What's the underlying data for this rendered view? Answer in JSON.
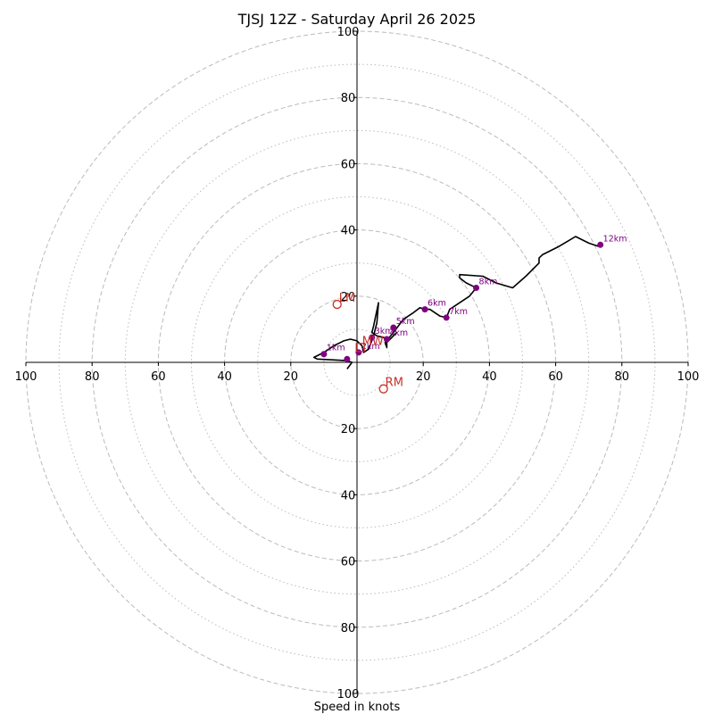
{
  "chart_data": {
    "type": "hodograph",
    "title": "TJSJ 12Z - Saturday April 26 2025",
    "xlabel": "Speed in knots",
    "range": [
      -100,
      100
    ],
    "ring_major": [
      20,
      40,
      60,
      80,
      100
    ],
    "ring_minor": [
      10,
      30,
      50,
      70,
      90
    ],
    "tick_labels": [
      "100",
      "80",
      "60",
      "40",
      "20",
      "20",
      "40",
      "60",
      "80",
      "100"
    ],
    "tick_values": [
      -100,
      -80,
      -60,
      -40,
      -20,
      20,
      40,
      60,
      80,
      100
    ],
    "hodograph_color": "#000000",
    "marker_color": "#800080",
    "motion_color": "#c8302a",
    "grid_color": "#bbbbbb",
    "series": [
      {
        "values": [
          [
            -3,
            -2
          ],
          [
            -1.5,
            0
          ],
          [
            -3,
            0.5
          ],
          [
            -12,
            1
          ],
          [
            -13,
            1.5
          ],
          [
            -10,
            3
          ],
          [
            -7,
            5
          ],
          [
            -4,
            6.5
          ],
          [
            -2,
            7
          ],
          [
            0,
            6.5
          ],
          [
            1.5,
            5
          ],
          [
            2,
            3
          ],
          [
            3.5,
            4
          ],
          [
            5,
            8
          ],
          [
            6,
            12
          ],
          [
            6.5,
            18
          ],
          [
            5,
            11
          ],
          [
            4.5,
            9
          ],
          [
            6,
            8
          ],
          [
            8,
            7.5
          ],
          [
            10,
            7
          ],
          [
            12,
            9
          ],
          [
            9,
            6
          ],
          [
            9,
            4.5
          ],
          [
            8.5,
            6
          ],
          [
            11,
            9
          ],
          [
            14,
            13
          ],
          [
            17,
            15
          ],
          [
            19,
            16.5
          ],
          [
            20.5,
            16
          ],
          [
            22,
            16
          ],
          [
            25,
            14
          ],
          [
            27,
            13.5
          ],
          [
            28,
            16
          ],
          [
            31,
            18
          ],
          [
            34,
            20
          ],
          [
            36,
            22.5
          ],
          [
            35,
            23
          ],
          [
            33,
            24
          ],
          [
            31,
            25.5
          ],
          [
            31,
            26.5
          ],
          [
            38,
            26
          ],
          [
            42,
            24
          ],
          [
            47,
            22.5
          ],
          [
            51,
            26
          ],
          [
            55,
            30
          ],
          [
            55,
            31.5
          ],
          [
            56,
            32.5
          ],
          [
            61,
            35
          ],
          [
            66,
            38
          ],
          [
            70,
            36
          ],
          [
            73,
            35
          ],
          [
            74,
            35.5
          ]
        ]
      }
    ],
    "height_markers": [
      {
        "label": "1km",
        "u": -10,
        "v": 2.5
      },
      {
        "label": "2km",
        "u": 0.5,
        "v": 3
      },
      {
        "label": "3km",
        "u": 4.5,
        "v": 7.5
      },
      {
        "label": "4km",
        "u": 9,
        "v": 7
      },
      {
        "label": "5km",
        "u": 11,
        "v": 10.5
      },
      {
        "label": "6km",
        "u": 20.5,
        "v": 16
      },
      {
        "label": "7km",
        "u": 27,
        "v": 13.5
      },
      {
        "label": "8km",
        "u": 36,
        "v": 22.5
      },
      {
        "label": "12km",
        "u": 73.5,
        "v": 35.5
      }
    ],
    "extra_points": [
      {
        "u": -3,
        "v": 1
      }
    ],
    "storm_motion": [
      {
        "label": "LM",
        "u": -6,
        "v": 17.5
      },
      {
        "label": "MW",
        "u": 1,
        "v": 4.5
      },
      {
        "label": "RM",
        "u": 8,
        "v": -8
      }
    ]
  }
}
